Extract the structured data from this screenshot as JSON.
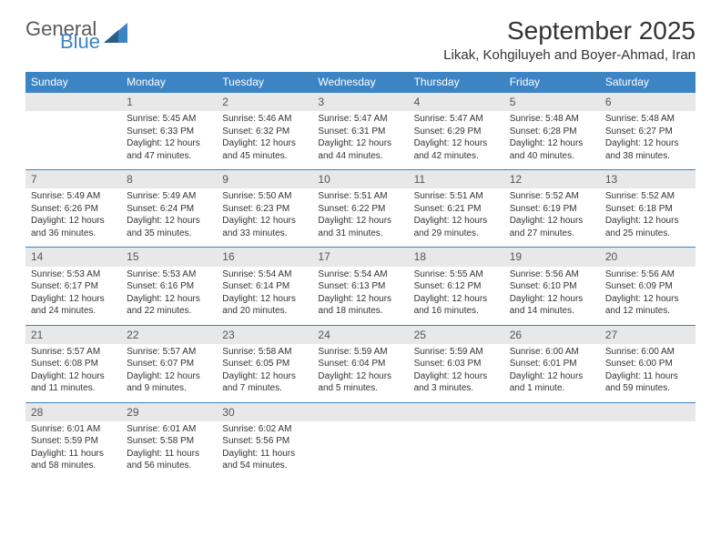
{
  "brand": {
    "word1": "General",
    "word2": "Blue",
    "color1": "#5a5a5a",
    "color2": "#3d84c4"
  },
  "title": "September 2025",
  "location": "Likak, Kohgiluyeh and Boyer-Ahmad, Iran",
  "header_bg": "#3d84c4",
  "header_fg": "#ffffff",
  "daynum_bg": "#e8e8e8",
  "cell_border": "#3d84c4",
  "columns": [
    "Sunday",
    "Monday",
    "Tuesday",
    "Wednesday",
    "Thursday",
    "Friday",
    "Saturday"
  ],
  "font_family": "Arial",
  "title_fontsize": 28,
  "header_fontsize": 12,
  "body_fontsize": 10,
  "weeks": [
    [
      null,
      {
        "n": "1",
        "sr": "5:45 AM",
        "ss": "6:33 PM",
        "dl": "12 hours and 47 minutes."
      },
      {
        "n": "2",
        "sr": "5:46 AM",
        "ss": "6:32 PM",
        "dl": "12 hours and 45 minutes."
      },
      {
        "n": "3",
        "sr": "5:47 AM",
        "ss": "6:31 PM",
        "dl": "12 hours and 44 minutes."
      },
      {
        "n": "4",
        "sr": "5:47 AM",
        "ss": "6:29 PM",
        "dl": "12 hours and 42 minutes."
      },
      {
        "n": "5",
        "sr": "5:48 AM",
        "ss": "6:28 PM",
        "dl": "12 hours and 40 minutes."
      },
      {
        "n": "6",
        "sr": "5:48 AM",
        "ss": "6:27 PM",
        "dl": "12 hours and 38 minutes."
      }
    ],
    [
      {
        "n": "7",
        "sr": "5:49 AM",
        "ss": "6:26 PM",
        "dl": "12 hours and 36 minutes."
      },
      {
        "n": "8",
        "sr": "5:49 AM",
        "ss": "6:24 PM",
        "dl": "12 hours and 35 minutes."
      },
      {
        "n": "9",
        "sr": "5:50 AM",
        "ss": "6:23 PM",
        "dl": "12 hours and 33 minutes."
      },
      {
        "n": "10",
        "sr": "5:51 AM",
        "ss": "6:22 PM",
        "dl": "12 hours and 31 minutes."
      },
      {
        "n": "11",
        "sr": "5:51 AM",
        "ss": "6:21 PM",
        "dl": "12 hours and 29 minutes."
      },
      {
        "n": "12",
        "sr": "5:52 AM",
        "ss": "6:19 PM",
        "dl": "12 hours and 27 minutes."
      },
      {
        "n": "13",
        "sr": "5:52 AM",
        "ss": "6:18 PM",
        "dl": "12 hours and 25 minutes."
      }
    ],
    [
      {
        "n": "14",
        "sr": "5:53 AM",
        "ss": "6:17 PM",
        "dl": "12 hours and 24 minutes."
      },
      {
        "n": "15",
        "sr": "5:53 AM",
        "ss": "6:16 PM",
        "dl": "12 hours and 22 minutes."
      },
      {
        "n": "16",
        "sr": "5:54 AM",
        "ss": "6:14 PM",
        "dl": "12 hours and 20 minutes."
      },
      {
        "n": "17",
        "sr": "5:54 AM",
        "ss": "6:13 PM",
        "dl": "12 hours and 18 minutes."
      },
      {
        "n": "18",
        "sr": "5:55 AM",
        "ss": "6:12 PM",
        "dl": "12 hours and 16 minutes."
      },
      {
        "n": "19",
        "sr": "5:56 AM",
        "ss": "6:10 PM",
        "dl": "12 hours and 14 minutes."
      },
      {
        "n": "20",
        "sr": "5:56 AM",
        "ss": "6:09 PM",
        "dl": "12 hours and 12 minutes."
      }
    ],
    [
      {
        "n": "21",
        "sr": "5:57 AM",
        "ss": "6:08 PM",
        "dl": "12 hours and 11 minutes."
      },
      {
        "n": "22",
        "sr": "5:57 AM",
        "ss": "6:07 PM",
        "dl": "12 hours and 9 minutes."
      },
      {
        "n": "23",
        "sr": "5:58 AM",
        "ss": "6:05 PM",
        "dl": "12 hours and 7 minutes."
      },
      {
        "n": "24",
        "sr": "5:59 AM",
        "ss": "6:04 PM",
        "dl": "12 hours and 5 minutes."
      },
      {
        "n": "25",
        "sr": "5:59 AM",
        "ss": "6:03 PM",
        "dl": "12 hours and 3 minutes."
      },
      {
        "n": "26",
        "sr": "6:00 AM",
        "ss": "6:01 PM",
        "dl": "12 hours and 1 minute."
      },
      {
        "n": "27",
        "sr": "6:00 AM",
        "ss": "6:00 PM",
        "dl": "11 hours and 59 minutes."
      }
    ],
    [
      {
        "n": "28",
        "sr": "6:01 AM",
        "ss": "5:59 PM",
        "dl": "11 hours and 58 minutes."
      },
      {
        "n": "29",
        "sr": "6:01 AM",
        "ss": "5:58 PM",
        "dl": "11 hours and 56 minutes."
      },
      {
        "n": "30",
        "sr": "6:02 AM",
        "ss": "5:56 PM",
        "dl": "11 hours and 54 minutes."
      },
      null,
      null,
      null,
      null
    ]
  ],
  "labels": {
    "sunrise": "Sunrise:",
    "sunset": "Sunset:",
    "daylight": "Daylight:"
  }
}
